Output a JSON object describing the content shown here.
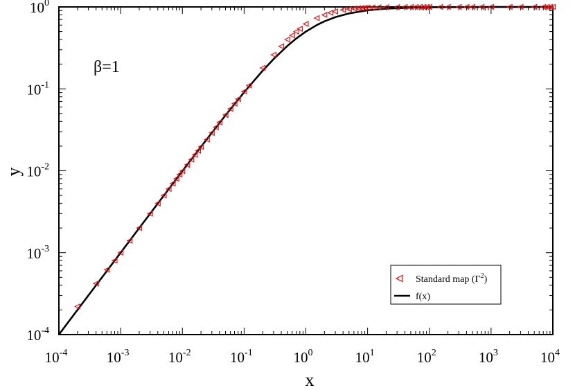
{
  "chart_data": {
    "type": "scatter",
    "title": "",
    "xlabel": "x",
    "ylabel": "y",
    "xscale": "log",
    "yscale": "log",
    "xlim": [
      0.0001,
      10000
    ],
    "ylim": [
      0.0001,
      1
    ],
    "grid": false,
    "legend_position": "bottom-right",
    "annotation": "β=1",
    "x_tick_labels": [
      {
        "value": 0.0001,
        "base": "10",
        "exp": "-4"
      },
      {
        "value": 0.001,
        "base": "10",
        "exp": "-3"
      },
      {
        "value": 0.01,
        "base": "10",
        "exp": "-2"
      },
      {
        "value": 0.1,
        "base": "10",
        "exp": "-1"
      },
      {
        "value": 1,
        "base": "10",
        "exp": "0"
      },
      {
        "value": 10,
        "base": "10",
        "exp": "1"
      },
      {
        "value": 100,
        "base": "10",
        "exp": "2"
      },
      {
        "value": 1000,
        "base": "10",
        "exp": "3"
      },
      {
        "value": 10000,
        "base": "10",
        "exp": "4"
      }
    ],
    "y_tick_labels": [
      {
        "value": 0.0001,
        "base": "10",
        "exp": "-4"
      },
      {
        "value": 0.001,
        "base": "10",
        "exp": "-3"
      },
      {
        "value": 0.01,
        "base": "10",
        "exp": "-2"
      },
      {
        "value": 0.1,
        "base": "10",
        "exp": "-1"
      },
      {
        "value": 1,
        "base": "10",
        "exp": "0"
      }
    ],
    "series": [
      {
        "name": "Standard map (Γ²)",
        "kind": "scatter",
        "marker": "left-triangle",
        "color": "#ff0000",
        "x": [
          0.0002,
          0.0004,
          0.0006,
          0.0008,
          0.001,
          0.0014,
          0.002,
          0.003,
          0.004,
          0.005,
          0.006,
          0.007,
          0.008,
          0.009,
          0.01,
          0.012,
          0.014,
          0.016,
          0.018,
          0.02,
          0.025,
          0.03,
          0.035,
          0.04,
          0.05,
          0.06,
          0.07,
          0.08,
          0.1,
          0.12,
          0.2,
          0.3,
          0.4,
          0.5,
          0.6,
          0.7,
          0.8,
          1,
          1.5,
          2,
          2.5,
          3,
          4,
          5,
          6,
          7,
          8,
          9,
          10,
          12,
          15,
          20,
          30,
          40,
          50,
          60,
          70,
          80,
          90,
          100,
          150,
          200,
          300,
          400,
          500,
          700,
          1000,
          2000,
          3000,
          5000,
          7000,
          8000,
          9000,
          10000
        ],
        "y": [
          0.00022,
          0.00042,
          0.00062,
          0.0008,
          0.001,
          0.0014,
          0.002,
          0.003,
          0.004,
          0.005,
          0.006,
          0.007,
          0.008,
          0.009,
          0.0099,
          0.0118,
          0.0137,
          0.0157,
          0.0176,
          0.0196,
          0.024,
          0.029,
          0.034,
          0.039,
          0.048,
          0.057,
          0.066,
          0.075,
          0.093,
          0.11,
          0.18,
          0.26,
          0.33,
          0.4,
          0.45,
          0.5,
          0.54,
          0.62,
          0.73,
          0.8,
          0.85,
          0.88,
          0.92,
          0.94,
          0.955,
          0.965,
          0.97,
          0.975,
          0.98,
          0.985,
          0.99,
          0.993,
          0.996,
          0.997,
          0.998,
          0.998,
          0.999,
          0.999,
          0.999,
          0.999,
          1,
          1,
          1,
          1,
          1,
          1,
          1,
          1,
          1,
          1,
          1,
          1,
          1,
          1
        ]
      },
      {
        "name": "f(x)",
        "kind": "line",
        "formula": "x/(1+x)",
        "color": "#000000",
        "x": [
          0.0001,
          0.0002,
          0.0005,
          0.001,
          0.002,
          0.005,
          0.01,
          0.02,
          0.05,
          0.1,
          0.2,
          0.3,
          0.5,
          0.7,
          1,
          1.5,
          2,
          3,
          5,
          10,
          20,
          50,
          100,
          1000,
          10000
        ],
        "y": [
          0.0001,
          0.0002,
          0.0005,
          0.000999,
          0.001996,
          0.004975,
          0.0099,
          0.0196,
          0.0476,
          0.0909,
          0.1667,
          0.2308,
          0.3333,
          0.4118,
          0.5,
          0.6,
          0.6667,
          0.75,
          0.8333,
          0.9091,
          0.9524,
          0.9804,
          0.9901,
          0.999,
          0.9999
        ]
      }
    ]
  }
}
